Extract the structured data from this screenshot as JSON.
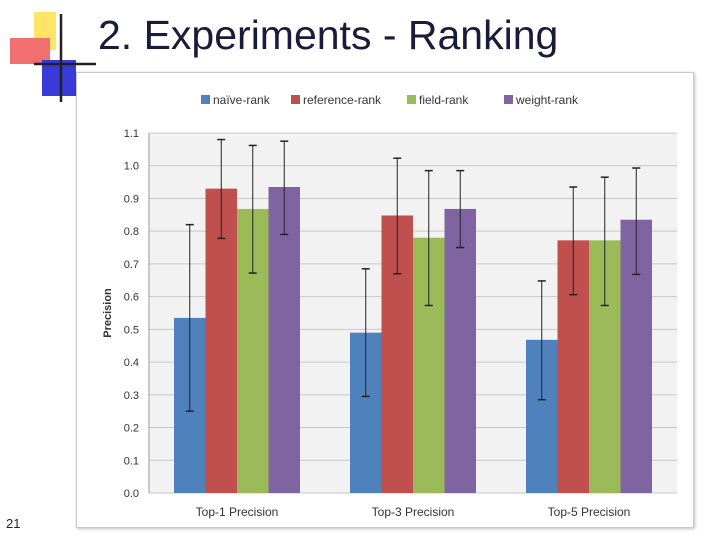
{
  "slide": {
    "title": "2. Experiments - Ranking",
    "number": "21"
  },
  "chart_data": {
    "type": "bar",
    "title": "",
    "xlabel": "",
    "ylabel": "Precision",
    "ylim": [
      0,
      1.1
    ],
    "yticks": [
      "0.0",
      "0.1",
      "0.2",
      "0.3",
      "0.4",
      "0.5",
      "0.6",
      "0.7",
      "0.8",
      "0.9",
      "1.0",
      "1.1"
    ],
    "grid": true,
    "legend": "top",
    "categories": [
      "Top-1 Precision",
      "Top-3 Precision",
      "Top-5 Precision"
    ],
    "series": [
      {
        "name": "naïve-rank",
        "color": "#4f81bd",
        "values": [
          0.535,
          0.49,
          0.468
        ],
        "error_low": [
          0.25,
          0.295,
          0.285
        ],
        "error_high": [
          0.82,
          0.685,
          0.648
        ]
      },
      {
        "name": "reference-rank",
        "color": "#c0504d",
        "values": [
          0.93,
          0.848,
          0.772
        ],
        "error_low": [
          0.778,
          0.67,
          0.606
        ],
        "error_high": [
          1.08,
          1.023,
          0.935
        ]
      },
      {
        "name": "field-rank",
        "color": "#9bbb59",
        "values": [
          0.868,
          0.78,
          0.772
        ],
        "error_low": [
          0.672,
          0.573,
          0.573
        ],
        "error_high": [
          1.062,
          0.985,
          0.965
        ]
      },
      {
        "name": "weight-rank",
        "color": "#8064a2",
        "values": [
          0.935,
          0.868,
          0.835
        ],
        "error_low": [
          0.79,
          0.75,
          0.668
        ],
        "error_high": [
          1.075,
          0.985,
          0.993
        ]
      }
    ]
  }
}
